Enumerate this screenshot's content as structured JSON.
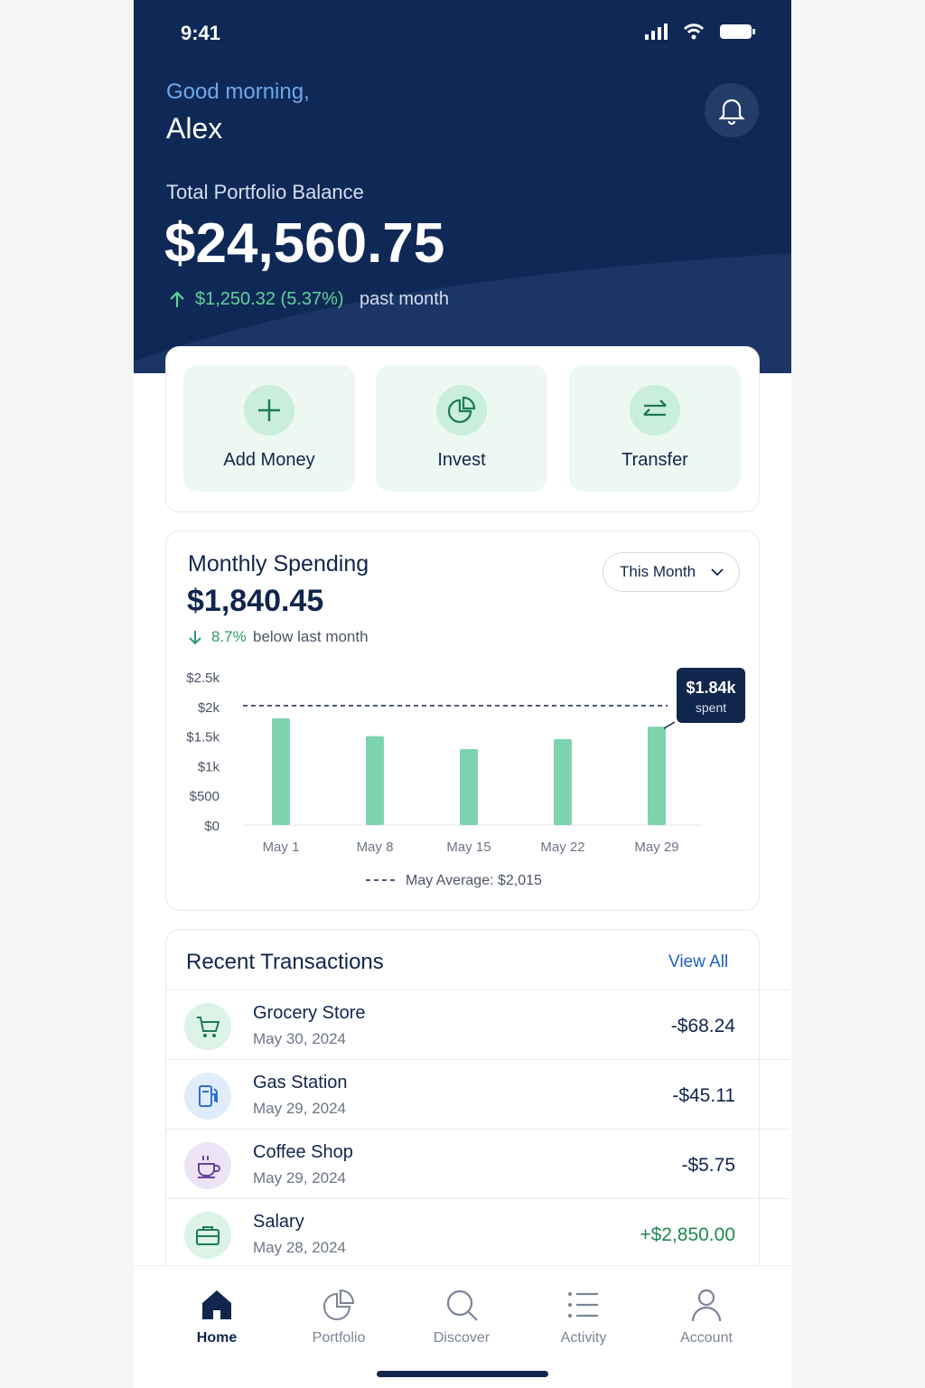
{
  "status_bar": {
    "time": "9:41"
  },
  "header": {
    "greeting": "Good morning,",
    "name": "Alex",
    "balance_label": "Total Portfolio Balance",
    "balance": "$24,560.75",
    "change": "$1,250.32 (5.37%)",
    "change_period": "past month"
  },
  "quick_actions": [
    {
      "label": "Add Money"
    },
    {
      "label": "Invest"
    },
    {
      "label": "Transfer"
    }
  ],
  "spending": {
    "title": "Monthly Spending",
    "amount": "$1,840.45",
    "change": "8.7%",
    "change_text": "below last month",
    "period_selector": "This Month",
    "chart_data": {
      "type": "bar",
      "categories": [
        "May 1",
        "May 8",
        "May 15",
        "May 22",
        "May 29"
      ],
      "values": [
        1800,
        1500,
        1280,
        1450,
        1660
      ],
      "color": "#7dd3ae",
      "ylim": [
        0,
        2500
      ],
      "yticks": [
        {
          "value": 0,
          "label": "$0"
        },
        {
          "value": 500,
          "label": "$500"
        },
        {
          "value": 1000,
          "label": "$1k"
        },
        {
          "value": 1500,
          "label": "$1.5k"
        },
        {
          "value": 2000,
          "label": "$2k"
        },
        {
          "value": 2500,
          "label": "$2.5k"
        }
      ],
      "average": 2015,
      "average_label": "May Average: $2,015",
      "callout_value": "$1.84k",
      "callout_text": "spent"
    }
  },
  "transactions": {
    "title": "Recent Transactions",
    "view_all": "View All",
    "rows": [
      {
        "name": "Grocery Store",
        "date": "May 30, 2024",
        "amount": "-$68.24"
      },
      {
        "name": "Gas Station",
        "date": "May 29, 2024",
        "amount": "-$45.11"
      },
      {
        "name": "Coffee Shop",
        "date": "May 29, 2024",
        "amount": "-$5.75"
      },
      {
        "name": "Salary",
        "date": "May 28, 2024",
        "amount": "+$2,850.00"
      }
    ]
  },
  "nav": [
    {
      "label": "Home"
    },
    {
      "label": "Portfolio"
    },
    {
      "label": "Discover"
    },
    {
      "label": "Activity"
    },
    {
      "label": "Account"
    }
  ]
}
